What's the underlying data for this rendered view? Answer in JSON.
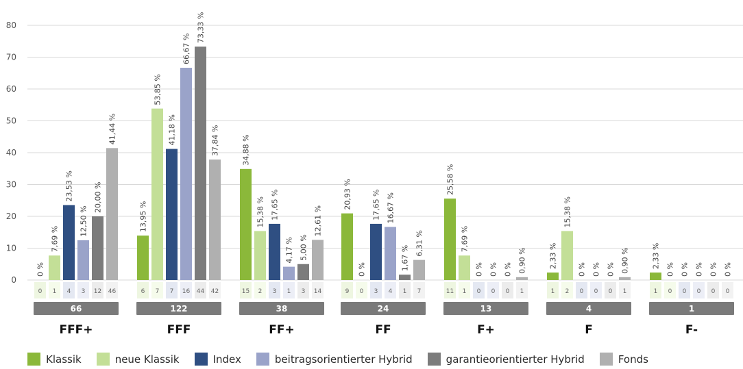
{
  "chart_data": {
    "type": "bar",
    "ylim": [
      0,
      80
    ],
    "yticks": [
      "0",
      "10",
      "20",
      "30",
      "40",
      "50",
      "60",
      "70",
      "80"
    ],
    "grid": true,
    "legend_position": "bottom",
    "categories": [
      "FFF+",
      "FFF",
      "FF+",
      "FF",
      "F+",
      "F",
      "F-"
    ],
    "group_totals": [
      "66",
      "122",
      "38",
      "24",
      "13",
      "4",
      "1"
    ],
    "series": [
      {
        "name": "Klassik",
        "color": "#8bb83a",
        "values": [
          0,
          13.95,
          34.88,
          20.93,
          25.58,
          2.33,
          2.33
        ],
        "labels": [
          "0 %",
          "13,95 %",
          "34,88 %",
          "20,93 %",
          "25,58 %",
          "2,33 %",
          "2,33 %"
        ],
        "counts": [
          "0",
          "6",
          "15",
          "9",
          "11",
          "1",
          "1"
        ]
      },
      {
        "name": "neue Klassik",
        "color": "#c3df97",
        "values": [
          7.69,
          53.85,
          15.38,
          0,
          7.69,
          15.38,
          0
        ],
        "labels": [
          "7,69 %",
          "53,85 %",
          "15,38 %",
          "0 %",
          "7,69 %",
          "15,38 %",
          "0 %"
        ],
        "counts": [
          "1",
          "7",
          "2",
          "0",
          "1",
          "2",
          "0"
        ]
      },
      {
        "name": "Index",
        "color": "#2f4f82",
        "values": [
          23.53,
          41.18,
          17.65,
          17.65,
          0,
          0,
          0
        ],
        "labels": [
          "23,53 %",
          "41,18 %",
          "17,65 %",
          "17,65 %",
          "0 %",
          "0 %",
          "0 %"
        ],
        "counts": [
          "4",
          "7",
          "3",
          "3",
          "0",
          "0",
          "0"
        ]
      },
      {
        "name": "beitragsorientierter Hybrid",
        "color": "#9aa3c9",
        "values": [
          12.5,
          66.67,
          4.17,
          16.67,
          0,
          0,
          0
        ],
        "labels": [
          "12,50 %",
          "66,67 %",
          "4,17 %",
          "16,67 %",
          "0 %",
          "0 %",
          "0 %"
        ],
        "counts": [
          "3",
          "16",
          "1",
          "4",
          "0",
          "0",
          "0"
        ]
      },
      {
        "name": "garantieorientierter Hybrid",
        "color": "#7c7c7c",
        "values": [
          20.0,
          73.33,
          5.0,
          1.67,
          0,
          0,
          0
        ],
        "labels": [
          "20,00 %",
          "73,33 %",
          "5,00 %",
          "1,67 %",
          "0 %",
          "0 %",
          "0 %"
        ],
        "counts": [
          "12",
          "44",
          "3",
          "1",
          "0",
          "0",
          "0"
        ]
      },
      {
        "name": "Fonds",
        "color": "#b0b0b0",
        "values": [
          41.44,
          37.84,
          12.61,
          6.31,
          0.9,
          0.9,
          0
        ],
        "labels": [
          "41,44 %",
          "37,84 %",
          "12,61 %",
          "6,31 %",
          "0,90 %",
          "0,90 %",
          "0 %"
        ],
        "counts": [
          "46",
          "42",
          "14",
          "7",
          "1",
          "1",
          "0"
        ]
      }
    ]
  }
}
